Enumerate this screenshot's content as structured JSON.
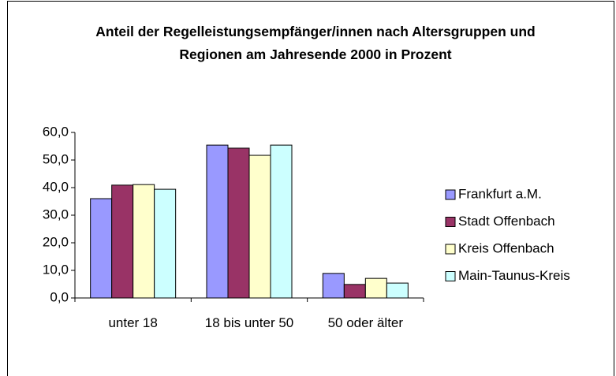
{
  "chart_data": {
    "type": "bar",
    "title": "Anteil der Regelleistungsempfänger/innen nach Altersgruppen und Regionen am Jahresende 2000 in Prozent",
    "categories": [
      "unter 18",
      "18 bis unter 50",
      "50 oder älter"
    ],
    "series": [
      {
        "name": "Frankfurt a.M.",
        "color": "#9999ff",
        "values": [
          36.0,
          55.4,
          8.9
        ]
      },
      {
        "name": "Stadt Offenbach",
        "color": "#993366",
        "values": [
          40.9,
          54.3,
          4.9
        ]
      },
      {
        "name": "Kreis Offenbach",
        "color": "#ffffcc",
        "values": [
          41.1,
          51.7,
          7.1
        ]
      },
      {
        "name": "Main-Taunus-Kreis",
        "color": "#ccffff",
        "values": [
          39.4,
          55.4,
          5.4
        ]
      }
    ],
    "ylim": [
      0,
      60
    ],
    "yticks": [
      {
        "value": 0,
        "label": "0,0"
      },
      {
        "value": 10,
        "label": "10,0"
      },
      {
        "value": 20,
        "label": "20,0"
      },
      {
        "value": 30,
        "label": "30,0"
      },
      {
        "value": 40,
        "label": "40,0"
      },
      {
        "value": 50,
        "label": "50,0"
      },
      {
        "value": 60,
        "label": "60,0"
      }
    ],
    "grid": false,
    "legend": "right"
  }
}
